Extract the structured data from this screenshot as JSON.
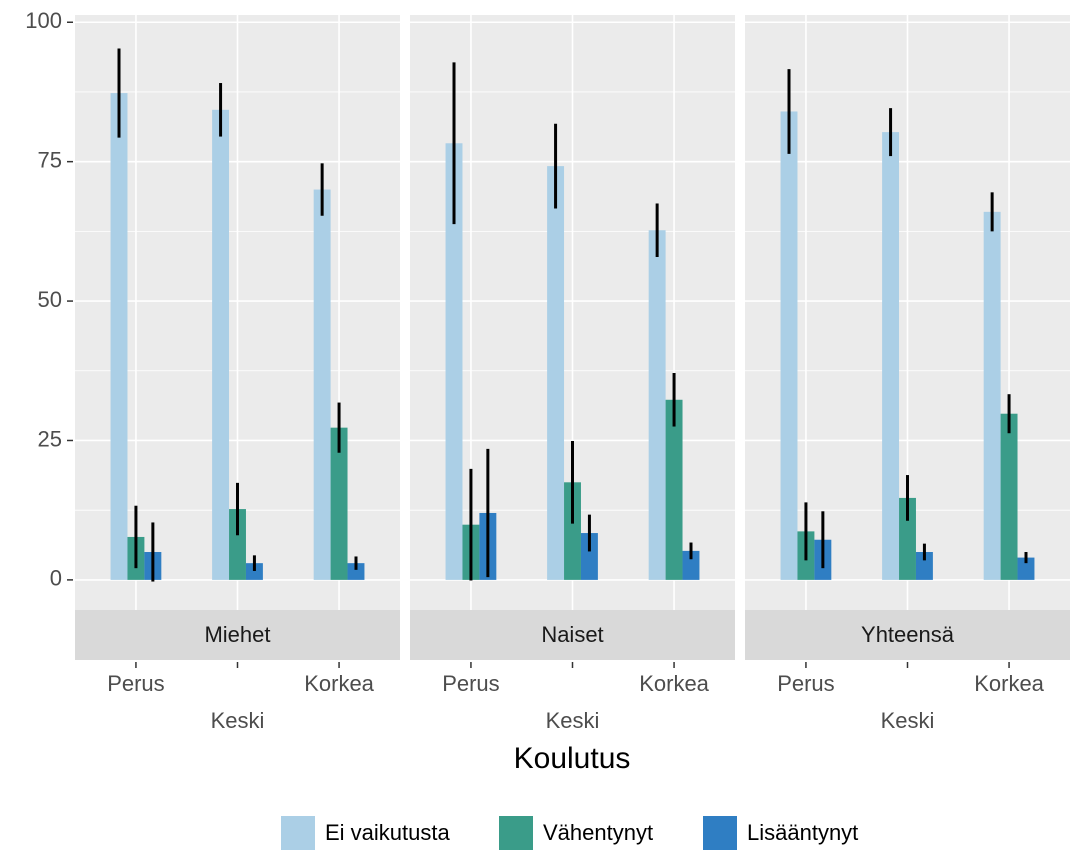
{
  "chart_data": {
    "type": "bar",
    "xlabel": "Koulutus",
    "categories": [
      "Perus",
      "Keski",
      "Korkea"
    ],
    "series": [
      {
        "name": "Ei vaikutusta",
        "color": "#abcfe6"
      },
      {
        "name": "Vähentynyt",
        "color": "#3a9c89"
      },
      {
        "name": "Lisääntynyt",
        "color": "#2f7ec3"
      }
    ],
    "ylim": [
      -5.4,
      101.3
    ],
    "yticks": [
      0,
      25,
      50,
      75,
      100
    ],
    "grid": true,
    "facets": [
      {
        "title": "Miehet",
        "series": [
          {
            "values": [
              87.3,
              84.3,
              70
            ],
            "errors": [
              8,
              4.8,
              4.7
            ]
          },
          {
            "values": [
              7.7,
              12.7,
              27.3
            ],
            "errors": [
              5.6,
              4.7,
              4.5
            ]
          },
          {
            "values": [
              5,
              3,
              3
            ],
            "errors": [
              5.3,
              1.4,
              1.2
            ]
          }
        ]
      },
      {
        "title": "Naiset",
        "series": [
          {
            "values": [
              78.3,
              74.2,
              62.7
            ],
            "errors": [
              14.5,
              7.6,
              4.8
            ]
          },
          {
            "values": [
              9.9,
              17.5,
              32.3
            ],
            "errors": [
              10,
              7.4,
              4.8
            ]
          },
          {
            "values": [
              12,
              8.4,
              5.2
            ],
            "errors": [
              11.5,
              3.3,
              1.5
            ]
          }
        ]
      },
      {
        "title": "Yhteensä",
        "series": [
          {
            "values": [
              84,
              80.3,
              66
            ],
            "errors": [
              7.6,
              4.3,
              3.5
            ]
          },
          {
            "values": [
              8.7,
              14.7,
              29.8
            ],
            "errors": [
              5.2,
              4.1,
              3.5
            ]
          },
          {
            "values": [
              7.2,
              5,
              4
            ],
            "errors": [
              5.1,
              1.5,
              1
            ]
          }
        ]
      }
    ]
  }
}
